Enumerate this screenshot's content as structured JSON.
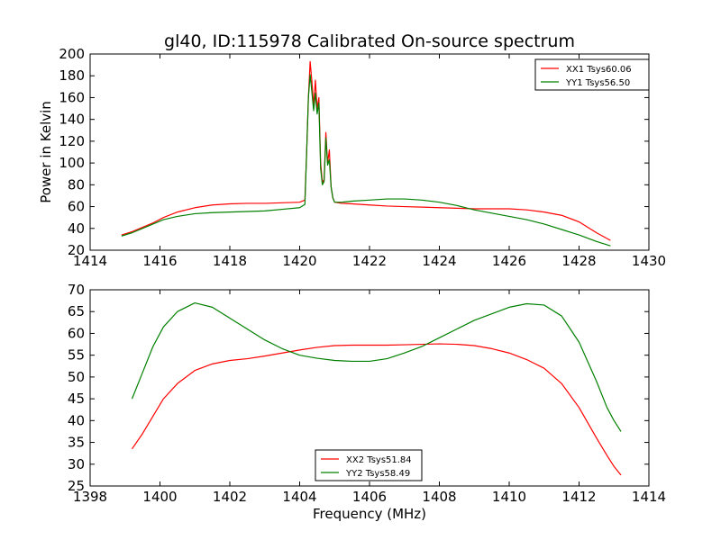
{
  "title": "gl40, ID:115978 Calibrated On-source spectrum",
  "colors": {
    "xx": "#ff0000",
    "yy": "#008000",
    "axes": "#000000",
    "background": "#ffffff"
  },
  "chart_data": [
    {
      "type": "line",
      "title": "gl40, ID:115978 Calibrated On-source spectrum",
      "xlabel": "",
      "ylabel": "Power in Kelvin",
      "xlim": [
        1414,
        1430
      ],
      "ylim": [
        20,
        200
      ],
      "xticks": [
        1414,
        1416,
        1418,
        1420,
        1422,
        1424,
        1426,
        1428,
        1430
      ],
      "yticks": [
        20,
        40,
        60,
        80,
        100,
        120,
        140,
        160,
        180,
        200
      ],
      "grid": false,
      "legend": "top-right",
      "series": [
        {
          "name": "XX1 Tsys60.06",
          "color": "#ff0000",
          "x": [
            1414.9,
            1415.2,
            1415.5,
            1415.8,
            1416.1,
            1416.5,
            1417.0,
            1417.5,
            1418.0,
            1418.5,
            1419.0,
            1419.5,
            1420.0,
            1420.15,
            1420.2,
            1420.25,
            1420.3,
            1420.35,
            1420.4,
            1420.45,
            1420.5,
            1420.55,
            1420.6,
            1420.65,
            1420.7,
            1420.75,
            1420.8,
            1420.85,
            1420.9,
            1420.95,
            1421.0,
            1421.2,
            1421.5,
            1422.0,
            1422.5,
            1423.0,
            1423.5,
            1424.0,
            1424.5,
            1425.0,
            1425.5,
            1426.0,
            1426.5,
            1427.0,
            1427.5,
            1428.0,
            1428.5,
            1428.9
          ],
          "y": [
            34,
            37,
            41,
            45,
            50,
            55,
            59,
            61.5,
            62.5,
            63,
            63,
            63.5,
            64,
            66,
            110,
            160,
            193,
            175,
            152,
            176,
            150,
            160,
            100,
            82,
            85,
            128,
            100,
            112,
            78,
            68,
            64,
            63,
            62.5,
            61.5,
            60.5,
            60,
            59.5,
            59,
            58.5,
            58,
            58,
            58,
            57,
            55,
            52,
            46,
            36,
            29
          ]
        },
        {
          "name": "YY1 Tsys56.50",
          "color": "#008000",
          "x": [
            1414.9,
            1415.2,
            1415.5,
            1415.8,
            1416.1,
            1416.5,
            1417.0,
            1417.5,
            1418.0,
            1418.5,
            1419.0,
            1419.5,
            1420.0,
            1420.15,
            1420.2,
            1420.25,
            1420.3,
            1420.35,
            1420.4,
            1420.45,
            1420.5,
            1420.55,
            1420.6,
            1420.65,
            1420.7,
            1420.75,
            1420.8,
            1420.85,
            1420.9,
            1420.95,
            1421.0,
            1421.2,
            1421.5,
            1422.0,
            1422.5,
            1423.0,
            1423.5,
            1424.0,
            1424.5,
            1425.0,
            1425.5,
            1426.0,
            1426.5,
            1427.0,
            1427.5,
            1428.0,
            1428.5,
            1428.9
          ],
          "y": [
            33,
            36,
            40,
            44,
            48,
            51,
            53.5,
            54.5,
            55,
            55.5,
            56,
            57.5,
            59,
            62,
            110,
            160,
            181,
            165,
            148,
            164,
            145,
            155,
            95,
            80,
            83,
            123,
            98,
            103,
            78,
            68,
            64,
            64,
            65,
            66,
            67,
            67,
            66,
            64,
            61,
            57,
            54,
            51,
            48,
            44,
            39,
            34,
            28,
            24
          ]
        }
      ]
    },
    {
      "type": "line",
      "title": "",
      "xlabel": "Frequency (MHz)",
      "ylabel": "",
      "xlim": [
        1398,
        1414
      ],
      "ylim": [
        25,
        70
      ],
      "xticks": [
        1398,
        1400,
        1402,
        1404,
        1406,
        1408,
        1410,
        1412,
        1414
      ],
      "yticks": [
        25,
        30,
        35,
        40,
        45,
        50,
        55,
        60,
        65,
        70
      ],
      "grid": false,
      "legend": "bottom-center",
      "series": [
        {
          "name": "XX2 Tsys51.84",
          "color": "#ff0000",
          "x": [
            1399.2,
            1399.5,
            1399.8,
            1400.1,
            1400.5,
            1401.0,
            1401.5,
            1402.0,
            1402.5,
            1403.0,
            1403.5,
            1404.0,
            1404.5,
            1405.0,
            1405.5,
            1406.0,
            1406.5,
            1407.0,
            1407.5,
            1408.0,
            1408.5,
            1409.0,
            1409.5,
            1410.0,
            1410.5,
            1411.0,
            1411.5,
            1412.0,
            1412.5,
            1412.8,
            1413.0,
            1413.2
          ],
          "y": [
            33.5,
            37,
            41,
            45,
            48.5,
            51.5,
            53,
            53.8,
            54.2,
            54.8,
            55.5,
            56.2,
            56.8,
            57.2,
            57.3,
            57.3,
            57.3,
            57.4,
            57.5,
            57.6,
            57.5,
            57.2,
            56.5,
            55.5,
            54,
            52,
            48.5,
            43,
            36,
            32,
            29.5,
            27.5
          ]
        },
        {
          "name": "YY2 Tsys58.49",
          "color": "#008000",
          "x": [
            1399.2,
            1399.5,
            1399.8,
            1400.1,
            1400.5,
            1401.0,
            1401.5,
            1402.0,
            1402.5,
            1403.0,
            1403.5,
            1404.0,
            1404.5,
            1405.0,
            1405.5,
            1406.0,
            1406.5,
            1407.0,
            1407.5,
            1408.0,
            1408.5,
            1409.0,
            1409.5,
            1410.0,
            1410.5,
            1411.0,
            1411.5,
            1412.0,
            1412.5,
            1412.8,
            1413.0,
            1413.2
          ],
          "y": [
            45,
            51,
            57,
            61.5,
            65,
            67,
            66,
            63.5,
            61,
            58.5,
            56.5,
            55,
            54.3,
            53.8,
            53.6,
            53.6,
            54.2,
            55.5,
            57,
            59,
            61,
            63,
            64.5,
            66,
            66.8,
            66.5,
            64,
            58,
            49,
            43,
            40,
            37.5
          ]
        }
      ]
    }
  ]
}
